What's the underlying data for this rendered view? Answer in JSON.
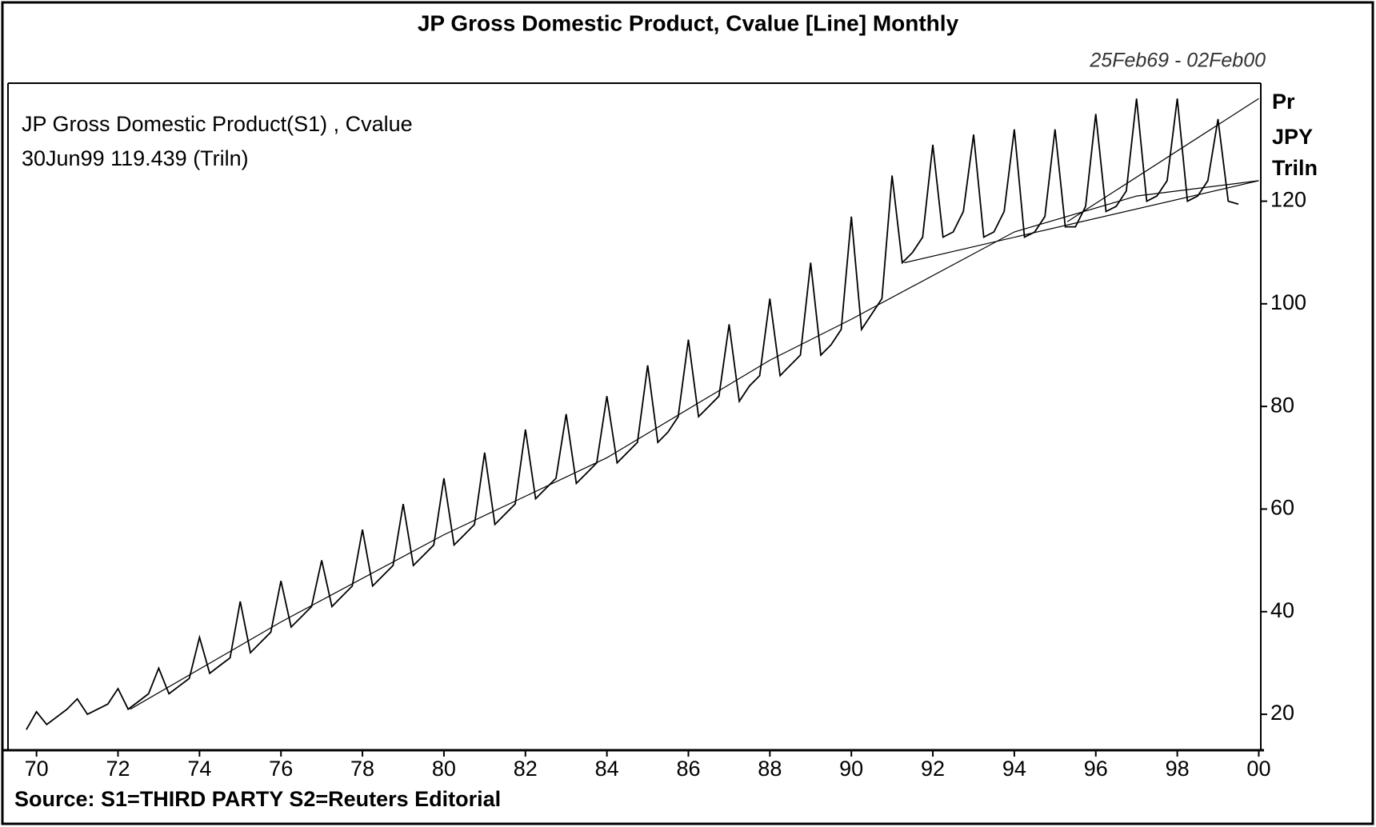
{
  "chart_data": {
    "type": "line",
    "title": "JP Gross Domestic Product, Cvalue [Line] Monthly",
    "subtitle": "25Feb69 - 02Feb00",
    "y_axis_label": [
      "Pr",
      "JPY",
      "Triln"
    ],
    "annotations": [
      "JP Gross Domestic Product(S1) , Cvalue",
      "30Jun99 119.439 (Triln)"
    ],
    "source": "Source: S1=THIRD PARTY S2=Reuters Editorial",
    "xlim": [
      69.3,
      100.05
    ],
    "ylim": [
      13,
      143
    ],
    "xticks": [
      70,
      72,
      74,
      76,
      78,
      80,
      82,
      84,
      86,
      88,
      90,
      92,
      94,
      96,
      98,
      {
        "value": 100,
        "label": "00"
      }
    ],
    "yticks": [
      20,
      40,
      60,
      80,
      100,
      120
    ],
    "grid": false,
    "series": [
      {
        "color": "#000000",
        "x": [
          69.75,
          70,
          70.25,
          70.5,
          70.75,
          71,
          71.25,
          71.5,
          71.75,
          72,
          72.25,
          72.5,
          72.75,
          73,
          73.25,
          73.5,
          73.75,
          74,
          74.25,
          74.5,
          74.75,
          75,
          75.25,
          75.5,
          75.75,
          76,
          76.25,
          76.5,
          76.75,
          77,
          77.25,
          77.5,
          77.75,
          78,
          78.25,
          78.5,
          78.75,
          79,
          79.25,
          79.5,
          79.75,
          80,
          80.25,
          80.5,
          80.75,
          81,
          81.25,
          81.5,
          81.75,
          82,
          82.25,
          82.5,
          82.75,
          83,
          83.25,
          83.5,
          83.75,
          84,
          84.25,
          84.5,
          84.75,
          85,
          85.25,
          85.5,
          85.75,
          86,
          86.25,
          86.5,
          86.75,
          87,
          87.25,
          87.5,
          87.75,
          88,
          88.25,
          88.5,
          88.75,
          89,
          89.25,
          89.5,
          89.75,
          90,
          90.25,
          90.5,
          90.75,
          91,
          91.25,
          91.5,
          91.75,
          92,
          92.25,
          92.5,
          92.75,
          93,
          93.25,
          93.5,
          93.75,
          94,
          94.25,
          94.5,
          94.75,
          95,
          95.25,
          95.5,
          95.75,
          96,
          96.25,
          96.5,
          96.75,
          97,
          97.25,
          97.5,
          97.75,
          98,
          98.25,
          98.5,
          98.75,
          99,
          99.25,
          99.5
        ],
        "values": [
          17,
          20.5,
          18,
          19.5,
          21,
          23,
          20,
          21,
          22,
          25,
          21,
          22.5,
          24,
          29,
          24,
          25.5,
          27,
          35,
          28,
          29.5,
          31,
          42,
          32,
          34,
          36,
          46,
          37,
          39,
          41,
          50,
          41,
          43,
          45,
          56,
          45,
          47,
          49,
          61,
          49,
          51,
          53,
          66,
          53,
          55,
          57,
          71,
          57,
          59,
          61,
          75.5,
          62,
          64,
          66,
          78.5,
          65,
          67,
          69,
          82,
          69,
          71,
          73,
          88,
          73,
          75,
          78,
          93,
          78,
          80,
          82,
          96,
          81,
          84,
          86,
          101,
          86,
          88,
          90,
          108,
          90,
          92,
          95,
          117,
          95,
          98,
          101,
          125,
          108,
          110,
          113,
          131,
          113,
          114,
          118,
          133,
          113,
          114,
          118,
          134,
          113,
          114,
          117,
          134,
          115,
          115,
          119,
          137,
          118,
          119,
          122,
          140,
          120,
          121,
          124,
          140,
          120,
          121,
          124,
          136,
          120,
          119.439
        ]
      },
      {
        "color": "#000000",
        "x": [
          72.3,
          76,
          80,
          84,
          88,
          90,
          94,
          97,
          100
        ],
        "values": [
          21,
          38,
          55,
          70,
          89,
          97,
          114,
          121,
          124
        ]
      },
      {
        "color": "#000000",
        "x": [
          91.3,
          100
        ],
        "values": [
          108,
          124
        ]
      },
      {
        "color": "#000000",
        "x": [
          95.3,
          100
        ],
        "values": [
          116,
          140
        ]
      }
    ]
  }
}
